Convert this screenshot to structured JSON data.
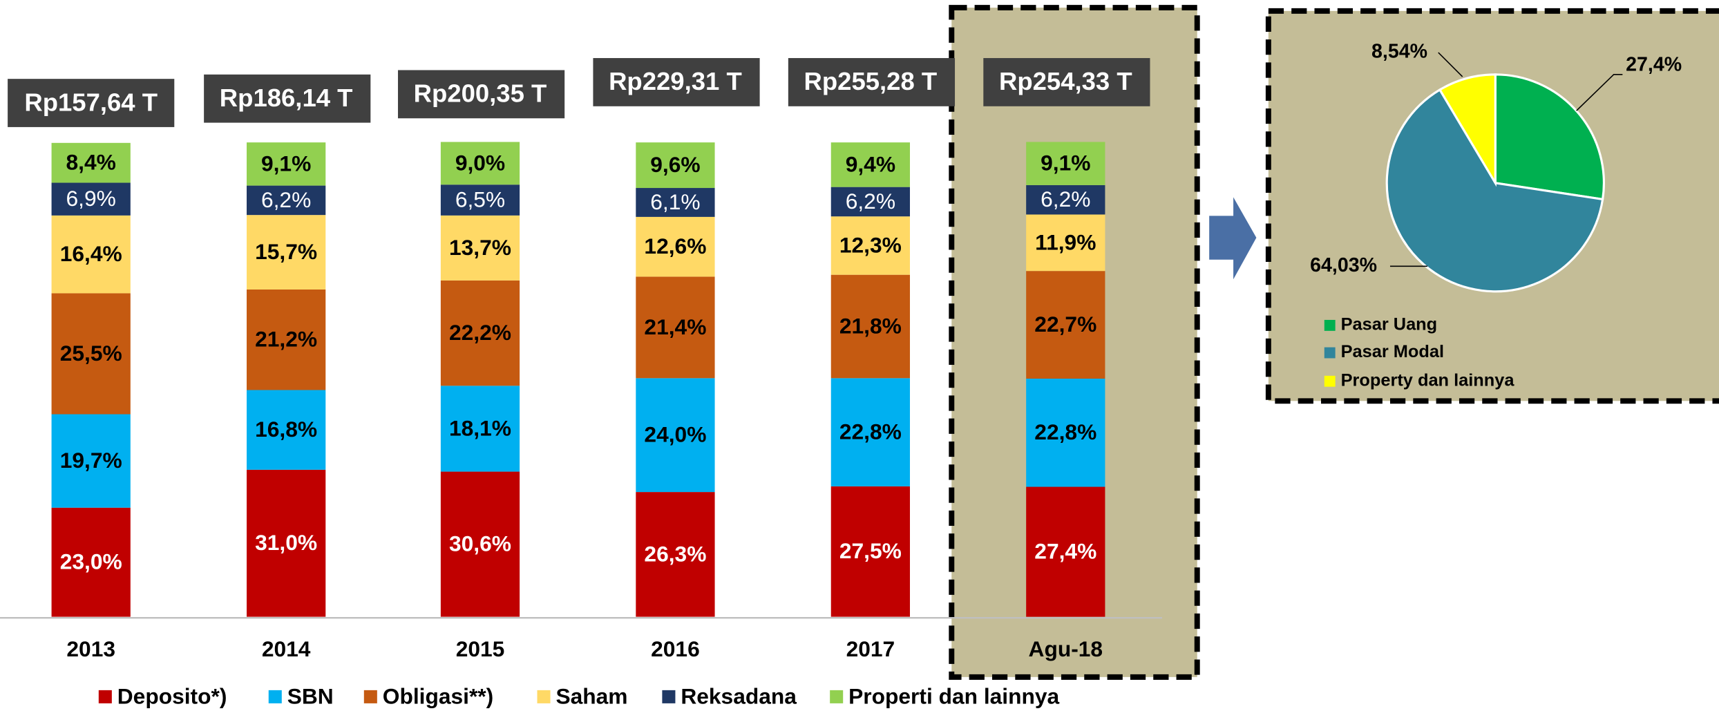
{
  "chart_data": [
    {
      "type": "stacked_bar",
      "categories": [
        "2013",
        "2014",
        "2015",
        "2016",
        "2017",
        "Agu-18"
      ],
      "totals": [
        "Rp157,64 T",
        "Rp186,14 T",
        "Rp200,35 T",
        "Rp229,31 T",
        "Rp255,28 T",
        "Rp254,33 T"
      ],
      "ylim": [
        0,
        100
      ],
      "series": [
        {
          "name": "Deposito*)",
          "color": "#c00000",
          "values": [
            23.0,
            31.0,
            30.6,
            26.3,
            27.5,
            27.4
          ],
          "value_labels": [
            "23,0%",
            "31,0%",
            "30,6%",
            "26,3%",
            "27,5%",
            "27,4%"
          ]
        },
        {
          "name": "SBN",
          "color": "#00b0f0",
          "values": [
            19.7,
            16.8,
            18.1,
            24.0,
            22.8,
            22.8
          ],
          "value_labels": [
            "19,7%",
            "16,8%",
            "18,1%",
            "24,0%",
            "22,8%",
            "22,8%"
          ]
        },
        {
          "name": "Obligasi**)",
          "color": "#c55a11",
          "values": [
            25.5,
            21.2,
            22.2,
            21.4,
            21.8,
            22.7
          ],
          "value_labels": [
            "25,5%",
            "21,2%",
            "22,2%",
            "21,4%",
            "21,8%",
            "22,7%"
          ]
        },
        {
          "name": "Saham",
          "color": "#ffd966",
          "values": [
            16.4,
            15.7,
            13.7,
            12.6,
            12.3,
            11.9
          ],
          "value_labels": [
            "16,4%",
            "15,7%",
            "13,7%",
            "12,6%",
            "12,3%",
            "11,9%"
          ]
        },
        {
          "name": "Reksadana",
          "color": "#1f3864",
          "values": [
            6.9,
            6.2,
            6.5,
            6.1,
            6.2,
            6.2
          ],
          "value_labels": [
            "6,9%",
            "6,2%",
            "6,5%",
            "6,1%",
            "6,2%",
            "6,2%"
          ]
        },
        {
          "name": "Properti dan lainnya",
          "color": "#92d050",
          "values": [
            8.4,
            9.1,
            9.0,
            9.6,
            9.4,
            9.1
          ],
          "value_labels": [
            "8,4%",
            "9,1%",
            "9,0%",
            "9,6%",
            "9,4%",
            "9,1%"
          ]
        }
      ]
    },
    {
      "type": "pie",
      "categories": [
        "Pasar Uang",
        "Pasar Modal",
        "Property dan lainnya"
      ],
      "values": [
        27.4,
        64.03,
        8.54
      ],
      "value_labels": [
        "27,4%",
        "64,03%",
        "8,54%"
      ],
      "colors": [
        "#00b050",
        "#31859c",
        "#ffff00"
      ]
    }
  ]
}
